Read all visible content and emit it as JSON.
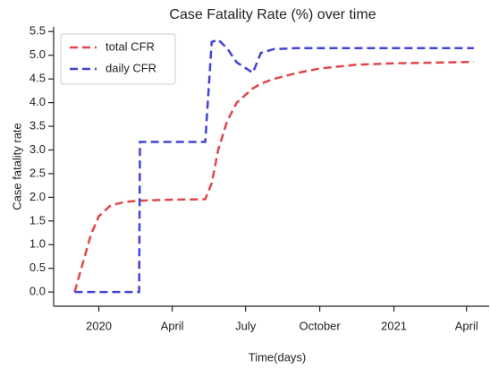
{
  "chart_data": {
    "type": "line",
    "title": "Case Fatality Rate (%) over time",
    "xlabel": "Time(days)",
    "ylabel": "Case fatality rate",
    "x": [
      "2019-12-02",
      "2019-12-12",
      "2019-12-22",
      "2020-01-01",
      "2020-01-15",
      "2020-02-01",
      "2020-02-20",
      "2020-02-21",
      "2020-04-01",
      "2020-05-12",
      "2020-05-20",
      "2020-05-28",
      "2020-06-08",
      "2020-06-20",
      "2020-07-10",
      "2020-07-20",
      "2020-08-05",
      "2020-09-01",
      "2020-10-01",
      "2020-11-15",
      "2021-01-01",
      "2021-04-10"
    ],
    "series": [
      {
        "name": "total CFR",
        "color": "#e0474c",
        "values": [
          0,
          0.6,
          1.2,
          1.6,
          1.82,
          1.9,
          1.93,
          1.93,
          1.95,
          1.96,
          2.3,
          3.0,
          3.6,
          4.0,
          4.3,
          4.4,
          4.5,
          4.62,
          4.72,
          4.8,
          4.83,
          4.86
        ]
      },
      {
        "name": "daily CFR",
        "color": "#4343d6",
        "values": [
          0,
          0,
          0,
          0,
          0,
          0,
          0,
          3.17,
          3.17,
          3.17,
          5.28,
          5.33,
          5.15,
          4.85,
          4.63,
          5.05,
          5.13,
          5.15,
          5.15,
          5.15,
          5.15,
          5.15
        ]
      }
    ],
    "xlim": [
      "2019-11-06",
      "2021-04-29"
    ],
    "xticks": [
      {
        "value": "2020-01-01",
        "label": "2020"
      },
      {
        "value": "2020-04-01",
        "label": "April"
      },
      {
        "value": "2020-07-01",
        "label": "July"
      },
      {
        "value": "2020-10-01",
        "label": "October"
      },
      {
        "value": "2021-01-01",
        "label": "2021"
      },
      {
        "value": "2021-04-01",
        "label": "April"
      }
    ],
    "ylim": [
      -0.3,
      5.6
    ],
    "yticks": [
      {
        "value": 0,
        "label": "0.0"
      },
      0.5,
      {
        "value": 1,
        "label": "1.0"
      },
      1.5,
      {
        "value": 2,
        "label": "2.0"
      },
      2.5,
      {
        "value": 3,
        "label": "3.0"
      },
      3.5,
      {
        "value": 4,
        "label": "4.0"
      },
      4.5,
      {
        "value": 5,
        "label": "5.0"
      },
      5.5
    ],
    "legend": "upper left",
    "line_style": "dashed"
  }
}
